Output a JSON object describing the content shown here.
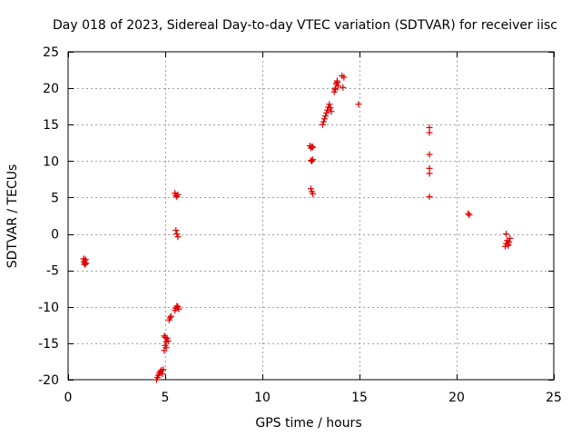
{
  "chart_data": {
    "type": "scatter",
    "title": "Day 018 of 2023, Sidereal Day-to-day VTEC variation (SDTVAR) for receiver iisc",
    "xlabel": "GPS time / hours",
    "ylabel": "SDTVAR / TECUs",
    "xlim": [
      0,
      25
    ],
    "ylim": [
      -20,
      25
    ],
    "xticks": [
      0,
      5,
      10,
      15,
      20,
      25
    ],
    "yticks": [
      -20,
      -15,
      -10,
      -5,
      0,
      5,
      10,
      15,
      20,
      25
    ],
    "grid": true,
    "marker": "+",
    "color": "#e00000",
    "series": [
      {
        "name": "SDTVAR",
        "x": [
          0.8,
          0.82,
          0.85,
          0.85,
          0.88,
          0.9,
          0.92,
          4.55,
          4.6,
          4.65,
          4.7,
          4.75,
          4.8,
          4.85,
          4.9,
          4.95,
          5.0,
          5.05,
          5.1,
          5.15,
          4.95,
          5.0,
          5.05,
          5.2,
          5.25,
          5.3,
          5.5,
          5.55,
          5.6,
          5.65,
          5.7,
          5.55,
          5.6,
          5.65,
          5.5,
          5.55,
          5.6,
          5.65,
          12.45,
          12.5,
          12.55,
          12.6,
          12.5,
          12.55,
          12.6,
          12.5,
          12.55,
          12.6,
          13.1,
          13.15,
          13.2,
          13.25,
          13.3,
          13.35,
          13.4,
          13.45,
          13.5,
          13.55,
          13.7,
          13.75,
          13.8,
          13.85,
          13.9,
          13.75,
          13.85,
          14.1,
          14.15,
          14.2,
          14.95,
          18.6,
          18.6,
          18.6,
          18.6,
          18.6,
          18.6,
          20.6,
          20.65,
          22.5,
          22.55,
          22.6,
          22.65,
          22.7,
          22.75,
          22.55,
          22.65
        ],
        "y": [
          -3.4,
          -3.9,
          -4.2,
          -3.7,
          -4.1,
          -3.5,
          -4.0,
          -20.0,
          -19.7,
          -19.4,
          -19.1,
          -18.9,
          -18.7,
          -19.2,
          -18.6,
          -16.0,
          -15.3,
          -14.8,
          -14.3,
          -14.7,
          -14.0,
          -14.2,
          -15.6,
          -11.8,
          -11.5,
          -11.3,
          -10.5,
          -10.2,
          -9.9,
          -10.0,
          -10.3,
          0.5,
          0.0,
          -0.4,
          5.6,
          5.3,
          5.1,
          5.4,
          12.1,
          11.8,
          12.0,
          11.9,
          10.1,
          10.0,
          10.2,
          6.2,
          5.8,
          5.5,
          15.0,
          15.4,
          15.8,
          16.2,
          16.6,
          17.0,
          17.4,
          17.8,
          17.3,
          16.8,
          19.5,
          20.0,
          20.6,
          21.0,
          20.3,
          19.8,
          20.8,
          21.7,
          20.1,
          21.5,
          17.8,
          14.6,
          13.9,
          10.9,
          9.0,
          8.3,
          5.1,
          2.8,
          2.6,
          -1.7,
          -1.3,
          -0.9,
          -1.6,
          -1.1,
          -0.6,
          0.0,
          -1.4
        ]
      }
    ]
  }
}
